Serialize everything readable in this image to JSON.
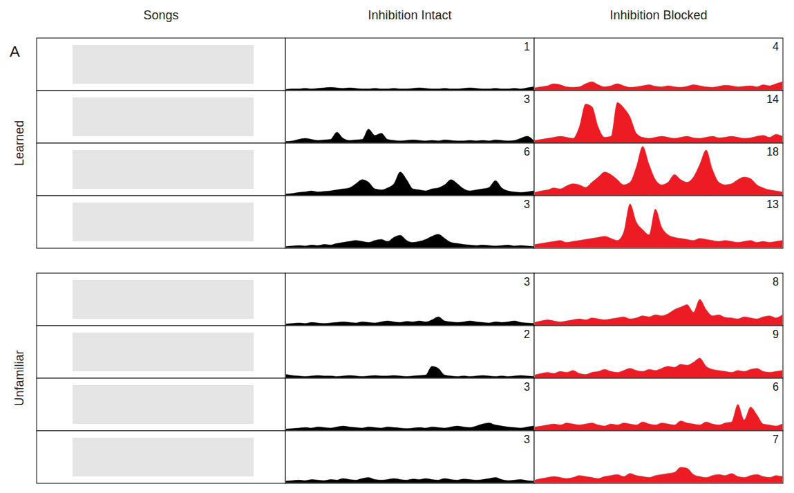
{
  "chart_data": {
    "type": "area",
    "letter": "A",
    "song_column": "Songs",
    "series": [
      {
        "name": "Inhibition Intact",
        "color": "#000000"
      },
      {
        "name": "Inhibition Blocked",
        "color": "#ed1c24"
      }
    ],
    "ylim": [
      0,
      100
    ],
    "tick_labels": false,
    "groups": [
      {
        "name": "Learned",
        "rows": [
          {
            "numbers": [
              1,
              4
            ],
            "values": [
              [
                1,
                2,
                2,
                3,
                2,
                3,
                4,
                5,
                4,
                3,
                4,
                3,
                2,
                2,
                3,
                2,
                2,
                3,
                2,
                2,
                3,
                4,
                3,
                2,
                2,
                3,
                2,
                2,
                3,
                4,
                3,
                2,
                2,
                3,
                2,
                2,
                3,
                2,
                4,
                6
              ],
              [
                4,
                6,
                8,
                12,
                10,
                6,
                5,
                6,
                12,
                16,
                10,
                6,
                8,
                12,
                8,
                5,
                6,
                8,
                10,
                7,
                6,
                8,
                6,
                5,
                7,
                10,
                8,
                6,
                5,
                7,
                9,
                8,
                6,
                7,
                8,
                6,
                10,
                8,
                12,
                16
              ]
            ]
          },
          {
            "numbers": [
              3,
              14
            ],
            "values": [
              [
                2,
                3,
                6,
                8,
                6,
                4,
                5,
                6,
                20,
                8,
                4,
                5,
                6,
                26,
                14,
                18,
                6,
                4,
                3,
                4,
                5,
                4,
                3,
                4,
                3,
                5,
                4,
                3,
                3,
                4,
                3,
                4,
                3,
                5,
                4,
                3,
                4,
                8,
                12,
                4
              ],
              [
                4,
                6,
                8,
                10,
                12,
                10,
                8,
                30,
                75,
                70,
                30,
                10,
                12,
                78,
                68,
                50,
                18,
                10,
                8,
                10,
                12,
                10,
                8,
                10,
                12,
                9,
                8,
                10,
                12,
                9,
                10,
                12,
                10,
                8,
                9,
                12,
                14,
                10,
                16,
                12
              ]
            ]
          },
          {
            "numbers": [
              6,
              18
            ],
            "values": [
              [
                2,
                3,
                5,
                6,
                8,
                6,
                7,
                8,
                10,
                12,
                14,
                22,
                30,
                25,
                12,
                10,
                14,
                22,
                45,
                30,
                12,
                10,
                8,
                12,
                14,
                20,
                30,
                22,
                12,
                8,
                10,
                12,
                15,
                28,
                14,
                8,
                6,
                5,
                6,
                8
              ],
              [
                5,
                8,
                10,
                14,
                12,
                18,
                22,
                20,
                15,
                25,
                35,
                45,
                40,
                30,
                20,
                25,
                55,
                95,
                60,
                30,
                20,
                25,
                40,
                30,
                25,
                35,
                60,
                88,
                50,
                25,
                20,
                22,
                30,
                35,
                32,
                20,
                14,
                10,
                8,
                6
              ]
            ]
          },
          {
            "numbers": [
              3,
              13
            ],
            "values": [
              [
                2,
                3,
                4,
                3,
                5,
                4,
                6,
                5,
                8,
                10,
                12,
                14,
                12,
                10,
                14,
                16,
                12,
                20,
                24,
                14,
                10,
                12,
                16,
                22,
                26,
                18,
                10,
                8,
                6,
                5,
                4,
                5,
                4,
                3,
                4,
                5,
                3,
                4,
                3,
                2
              ],
              [
                6,
                8,
                10,
                12,
                14,
                10,
                12,
                14,
                16,
                18,
                20,
                22,
                18,
                14,
                30,
                85,
                50,
                35,
                25,
                75,
                40,
                25,
                20,
                18,
                16,
                14,
                18,
                16,
                14,
                12,
                14,
                12,
                10,
                12,
                14,
                10,
                12,
                10,
                12,
                14
              ]
            ]
          }
        ]
      },
      {
        "name": "Unfamiliar",
        "rows": [
          {
            "numbers": [
              3,
              8
            ],
            "values": [
              [
                2,
                3,
                4,
                3,
                5,
                4,
                3,
                4,
                5,
                6,
                5,
                4,
                6,
                5,
                4,
                6,
                8,
                6,
                5,
                7,
                6,
                8,
                6,
                10,
                16,
                8,
                6,
                5,
                6,
                8,
                6,
                5,
                4,
                6,
                5,
                6,
                8,
                5,
                4,
                3
              ],
              [
                5,
                8,
                10,
                8,
                6,
                8,
                10,
                12,
                10,
                14,
                12,
                10,
                12,
                14,
                16,
                12,
                14,
                18,
                16,
                20,
                18,
                22,
                30,
                35,
                40,
                25,
                50,
                30,
                18,
                20,
                15,
                14,
                12,
                16,
                14,
                12,
                16,
                18,
                14,
                20
              ]
            ]
          },
          {
            "numbers": [
              2,
              9
            ],
            "values": [
              [
                6,
                4,
                3,
                2,
                3,
                4,
                3,
                3,
                2,
                3,
                4,
                3,
                2,
                3,
                4,
                3,
                3,
                4,
                3,
                2,
                3,
                4,
                5,
                22,
                18,
                5,
                3,
                2,
                3,
                2,
                3,
                4,
                3,
                2,
                3,
                2,
                3,
                4,
                3,
                2
              ],
              [
                5,
                8,
                10,
                8,
                12,
                10,
                14,
                8,
                6,
                10,
                12,
                16,
                12,
                10,
                14,
                18,
                14,
                12,
                16,
                14,
                18,
                22,
                20,
                26,
                24,
                30,
                38,
                22,
                16,
                14,
                12,
                10,
                14,
                12,
                16,
                18,
                12,
                10,
                12,
                14
              ]
            ]
          },
          {
            "numbers": [
              3,
              6
            ],
            "values": [
              [
                2,
                3,
                4,
                5,
                4,
                6,
                5,
                4,
                6,
                8,
                6,
                5,
                4,
                6,
                5,
                4,
                6,
                5,
                4,
                3,
                4,
                5,
                4,
                6,
                5,
                4,
                6,
                8,
                6,
                5,
                8,
                12,
                14,
                10,
                8,
                6,
                5,
                4,
                6,
                8
              ],
              [
                6,
                8,
                10,
                12,
                10,
                14,
                12,
                10,
                12,
                14,
                10,
                8,
                12,
                10,
                14,
                12,
                10,
                16,
                12,
                10,
                14,
                12,
                10,
                18,
                14,
                12,
                10,
                16,
                12,
                10,
                14,
                16,
                50,
                20,
                45,
                30,
                12,
                10,
                8,
                12
              ]
            ]
          },
          {
            "numbers": [
              3,
              7
            ],
            "values": [
              [
                3,
                4,
                5,
                4,
                6,
                5,
                4,
                6,
                5,
                8,
                6,
                5,
                8,
                10,
                6,
                5,
                6,
                8,
                6,
                5,
                7,
                6,
                8,
                6,
                5,
                8,
                6,
                5,
                7,
                6,
                5,
                6,
                8,
                10,
                6,
                4,
                5,
                6,
                4,
                3
              ],
              [
                5,
                8,
                10,
                12,
                10,
                8,
                10,
                14,
                12,
                10,
                8,
                12,
                14,
                16,
                12,
                18,
                14,
                12,
                10,
                14,
                16,
                18,
                20,
                30,
                28,
                16,
                12,
                10,
                14,
                16,
                14,
                18,
                12,
                10,
                14,
                16,
                12,
                10,
                14,
                12
              ]
            ]
          }
        ]
      }
    ]
  }
}
